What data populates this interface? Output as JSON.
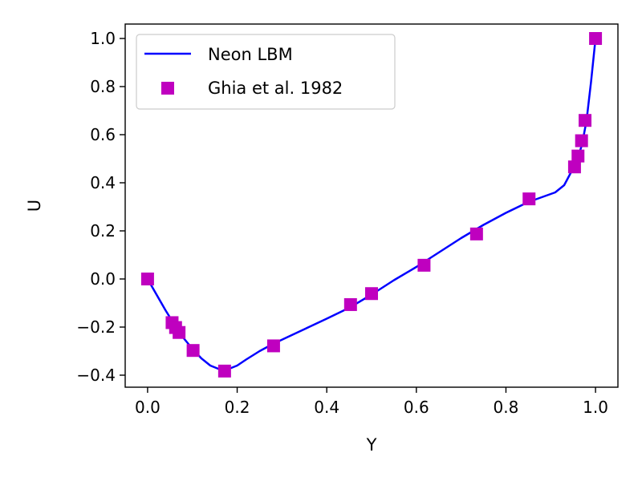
{
  "chart_data": {
    "type": "line",
    "title": "",
    "xlabel": "Y",
    "ylabel": "U",
    "xlim": [
      -0.05,
      1.05
    ],
    "ylim": [
      -0.45,
      1.06
    ],
    "xticks": [
      0.0,
      0.2,
      0.4,
      0.6,
      0.8,
      1.0
    ],
    "xtick_labels": [
      "0.0",
      "0.2",
      "0.4",
      "0.6",
      "0.8",
      "1.0"
    ],
    "yticks": [
      -0.4,
      -0.2,
      0.0,
      0.2,
      0.4,
      0.6,
      0.8,
      1.0
    ],
    "ytick_labels": [
      "−0.4",
      "−0.2",
      "0.0",
      "0.2",
      "0.4",
      "0.6",
      "0.8",
      "1.0"
    ],
    "grid": false,
    "legend_position": "top-left",
    "series": [
      {
        "name": "Neon LBM",
        "kind": "line",
        "color": "#0000ff",
        "x": [
          0.0,
          0.02,
          0.04,
          0.06,
          0.08,
          0.1,
          0.12,
          0.14,
          0.16,
          0.18,
          0.2,
          0.22,
          0.25,
          0.28,
          0.32,
          0.36,
          0.4,
          0.45,
          0.5,
          0.55,
          0.6,
          0.65,
          0.7,
          0.75,
          0.8,
          0.85,
          0.88,
          0.91,
          0.93,
          0.95,
          0.96,
          0.97,
          0.98,
          0.99,
          1.0
        ],
        "y": [
          0.0,
          -0.065,
          -0.13,
          -0.19,
          -0.245,
          -0.29,
          -0.33,
          -0.36,
          -0.375,
          -0.375,
          -0.36,
          -0.335,
          -0.3,
          -0.27,
          -0.235,
          -0.2,
          -0.165,
          -0.12,
          -0.065,
          -0.005,
          0.05,
          0.11,
          0.17,
          0.225,
          0.275,
          0.32,
          0.34,
          0.36,
          0.39,
          0.46,
          0.5,
          0.56,
          0.66,
          0.82,
          1.0
        ]
      },
      {
        "name": "Ghia et al. 1982",
        "kind": "scatter",
        "marker": "square",
        "color": "#bf00bf",
        "x": [
          0.0,
          0.0547,
          0.0625,
          0.0703,
          0.1016,
          0.1719,
          0.2813,
          0.4531,
          0.5,
          0.6172,
          0.7344,
          0.8516,
          0.9531,
          0.9609,
          0.9688,
          0.9766,
          1.0
        ],
        "y": [
          0.0,
          -0.1815,
          -0.2019,
          -0.2224,
          -0.2973,
          -0.3829,
          -0.2781,
          -0.1065,
          -0.0608,
          0.0571,
          0.1872,
          0.333,
          0.466,
          0.5112,
          0.5749,
          0.6593,
          1.0
        ]
      }
    ]
  }
}
